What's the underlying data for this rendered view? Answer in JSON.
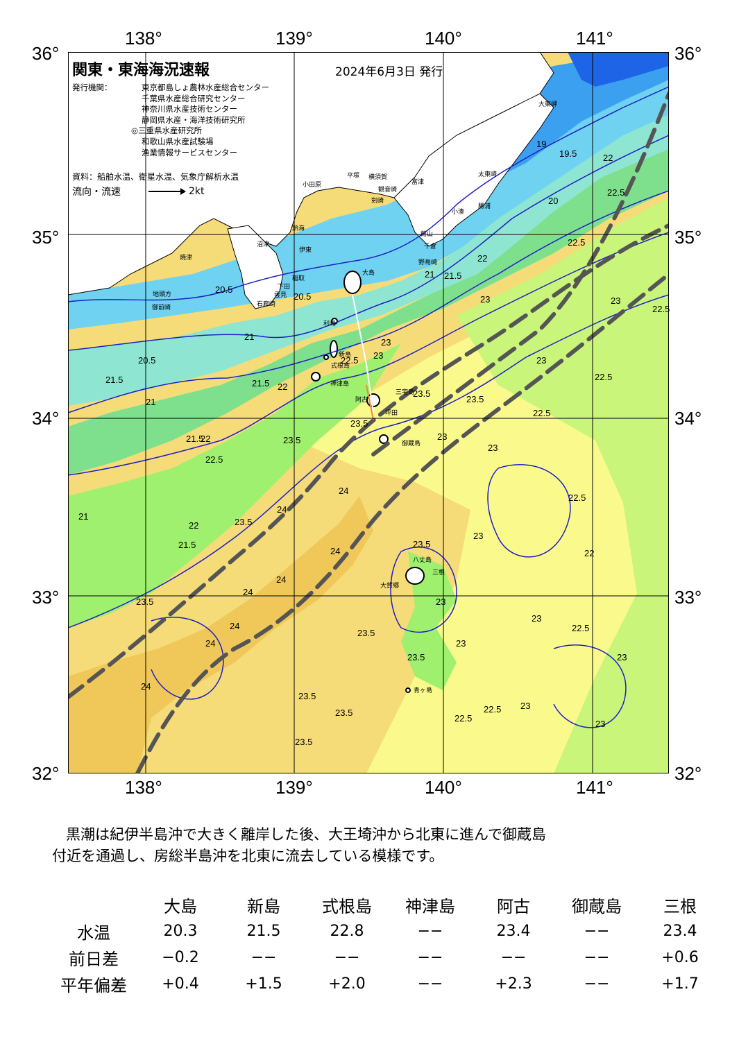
{
  "title": "関東・東海海況速報",
  "issue_date": "2024年6月3日 発行",
  "issuers_label": "発行機関：",
  "issuers": [
    "東京都島しょ農林水産総合センター",
    "千葉県水産総合研究センター",
    "神奈川県水産技術センター",
    "静岡県水産・海洋技術研究所",
    "◎三重県水産研究所",
    "和歌山県水産試験場",
    "漁業情報サービスセンター"
  ],
  "source": "資料：船舶水温、衛星水温、気象庁解析水温",
  "flow_label": "流向・流速",
  "flow_scale": "2kt",
  "axes": {
    "lon_labels": [
      "138°",
      "139°",
      "140°",
      "141°"
    ],
    "lat_labels": [
      "36°",
      "35°",
      "34°",
      "33°",
      "32°"
    ]
  },
  "places": [
    "大東岬",
    "太東崎",
    "勝浦",
    "小湊",
    "野島崎",
    "千倉",
    "館山",
    "富津",
    "横須賀",
    "観音崎",
    "剣崎",
    "平塚",
    "小田原",
    "熱海",
    "伊東",
    "稲取",
    "下田",
    "石廊崎",
    "雲見",
    "沼津",
    "焼津",
    "御前崎",
    "地頭方",
    "大島",
    "利島",
    "新島",
    "式根島",
    "神津島",
    "三宅島",
    "阿古",
    "坪田",
    "御蔵島",
    "八丈島",
    "三根",
    "大賀郷",
    "青ヶ島"
  ],
  "isotherms": [
    "19",
    "19.5",
    "20",
    "20.5",
    "20.5",
    "20.5",
    "21",
    "21",
    "21",
    "21",
    "21.5",
    "21.5",
    "21.5",
    "21.5",
    "21.5",
    "22",
    "22",
    "22",
    "22",
    "22",
    "22",
    "22.5",
    "22.5",
    "22.5",
    "22.5",
    "22.5",
    "22.5",
    "22.5",
    "22.5",
    "22.5",
    "22.5",
    "22.5",
    "23",
    "23",
    "23",
    "23",
    "23",
    "23",
    "23",
    "23",
    "23",
    "23",
    "23",
    "23",
    "23",
    "23",
    "23.5",
    "23.5",
    "23.5",
    "23.5",
    "23.5",
    "23.5",
    "23.5",
    "23.5",
    "23.5",
    "23.5",
    "23.5",
    "23.5",
    "24",
    "24",
    "24",
    "24",
    "24",
    "24",
    "24",
    "24"
  ],
  "colors": {
    "t_lt19": "#1e64e6",
    "t_19_20": "#3ca0f0",
    "t_20_21": "#6ed2f0",
    "t_21_21_5": "#8ee6d2",
    "t_21_5_22": "#7ee08c",
    "t_22_22_5": "#9ef06e",
    "t_22_5_23": "#c8f57a",
    "t_23_23_5": "#fafa8c",
    "t_23_5_24": "#f5dc78",
    "t_gt24": "#f0c85a",
    "kuroshio_axis": "#555555",
    "isotherm": "#1e1ec8"
  },
  "comment": [
    "黒潮は紀伊半島沖で大きく離岸した後、大王埼沖から北東に進んで御蔵島",
    "付近を通過し、房総半島沖を北東に流去している模様です。"
  ],
  "table": {
    "stations": [
      "大島",
      "新島",
      "式根島",
      "神津島",
      "阿古",
      "御蔵島",
      "三根"
    ],
    "rows": [
      {
        "label": "水温",
        "values": [
          "20.3",
          "21.5",
          "22.8",
          "−−",
          "23.4",
          "−−",
          "23.4"
        ]
      },
      {
        "label": "前日差",
        "values": [
          "−0.2",
          "−−",
          "−−",
          "−−",
          "−−",
          "−−",
          "+0.6"
        ]
      },
      {
        "label": "平年偏差",
        "values": [
          "+0.4",
          "+1.5",
          "+2.0",
          "−−",
          "+2.3",
          "−−",
          "+1.7"
        ]
      }
    ]
  }
}
